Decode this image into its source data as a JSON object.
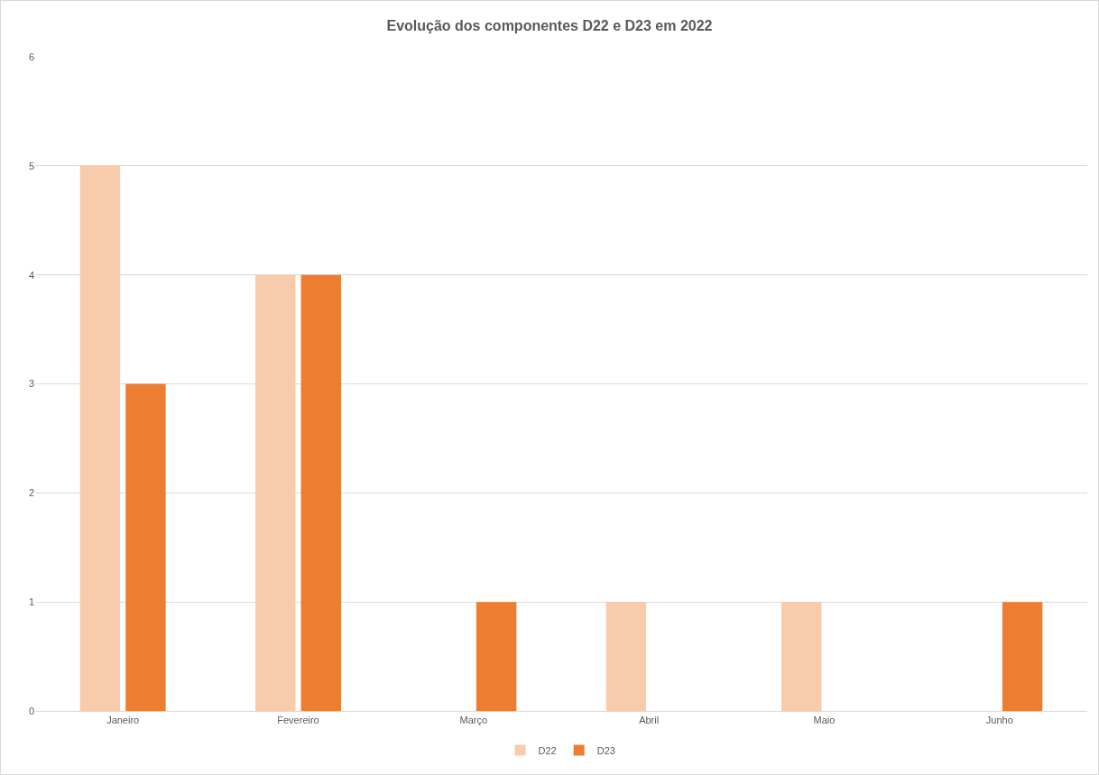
{
  "chart_data": {
    "type": "bar",
    "title": "Evolução dos componentes D22 e D23 em 2022",
    "categories": [
      "Janeiro",
      "Fevereiro",
      "Março",
      "Abril",
      "Maio",
      "Junho"
    ],
    "series": [
      {
        "name": "D22",
        "color": "#f8cbad",
        "values": [
          5,
          4,
          0,
          1,
          1,
          0
        ]
      },
      {
        "name": "D23",
        "color": "#ed7d31",
        "values": [
          3,
          4,
          1,
          0,
          0,
          1
        ]
      }
    ],
    "ylim": [
      0,
      6
    ],
    "yticks": [
      0,
      1,
      2,
      3,
      4,
      5,
      6
    ],
    "grid": "y",
    "legend": "bottom"
  }
}
